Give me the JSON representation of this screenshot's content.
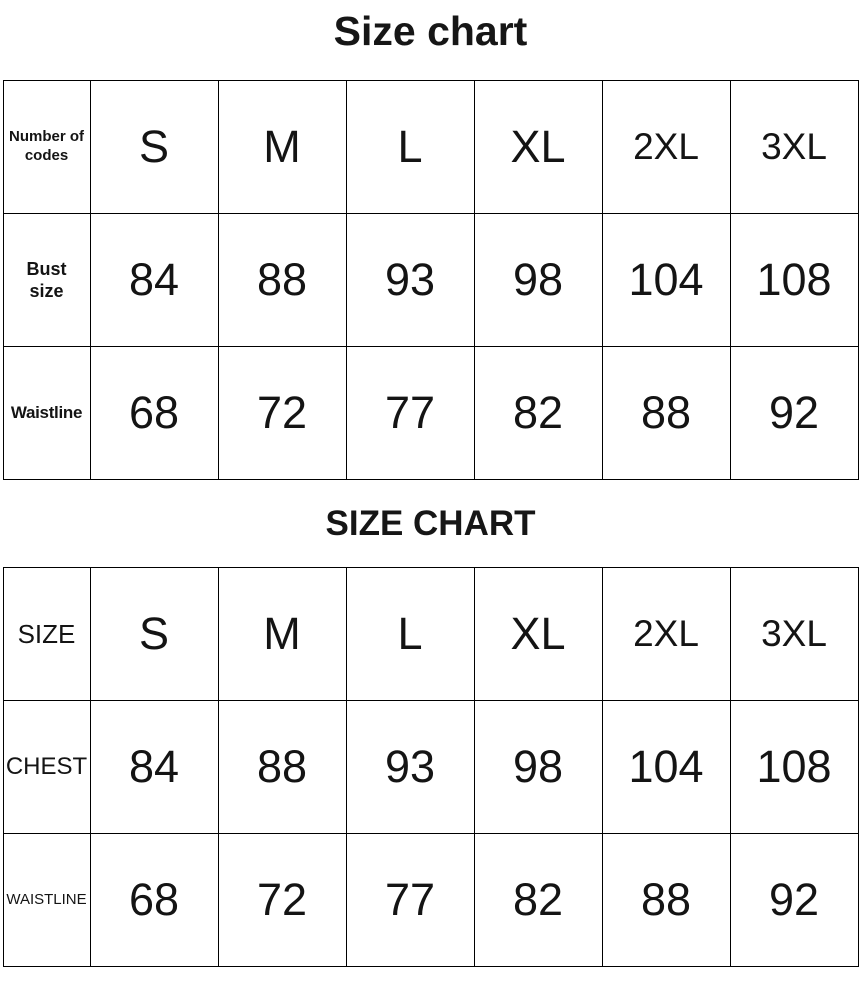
{
  "colors": {
    "background": "#ffffff",
    "text": "#141414",
    "border": "#000000"
  },
  "chart_data": [
    {
      "type": "table",
      "title": "Size chart",
      "header_label": "Number of codes",
      "categories": [
        "S",
        "M",
        "L",
        "XL",
        "2XL",
        "3XL"
      ],
      "rows": [
        {
          "label": "Bust size",
          "values": [
            84,
            88,
            93,
            98,
            104,
            108
          ]
        },
        {
          "label": "Waistline",
          "values": [
            68,
            72,
            77,
            82,
            88,
            92
          ]
        }
      ]
    },
    {
      "type": "table",
      "title": "SIZE CHART",
      "header_label": "SIZE",
      "categories": [
        "S",
        "M",
        "L",
        "XL",
        "2XL",
        "3XL"
      ],
      "rows": [
        {
          "label": "CHEST",
          "values": [
            84,
            88,
            93,
            98,
            104,
            108
          ]
        },
        {
          "label": "WAISTLINE",
          "values": [
            68,
            72,
            77,
            82,
            88,
            92
          ]
        }
      ]
    }
  ]
}
